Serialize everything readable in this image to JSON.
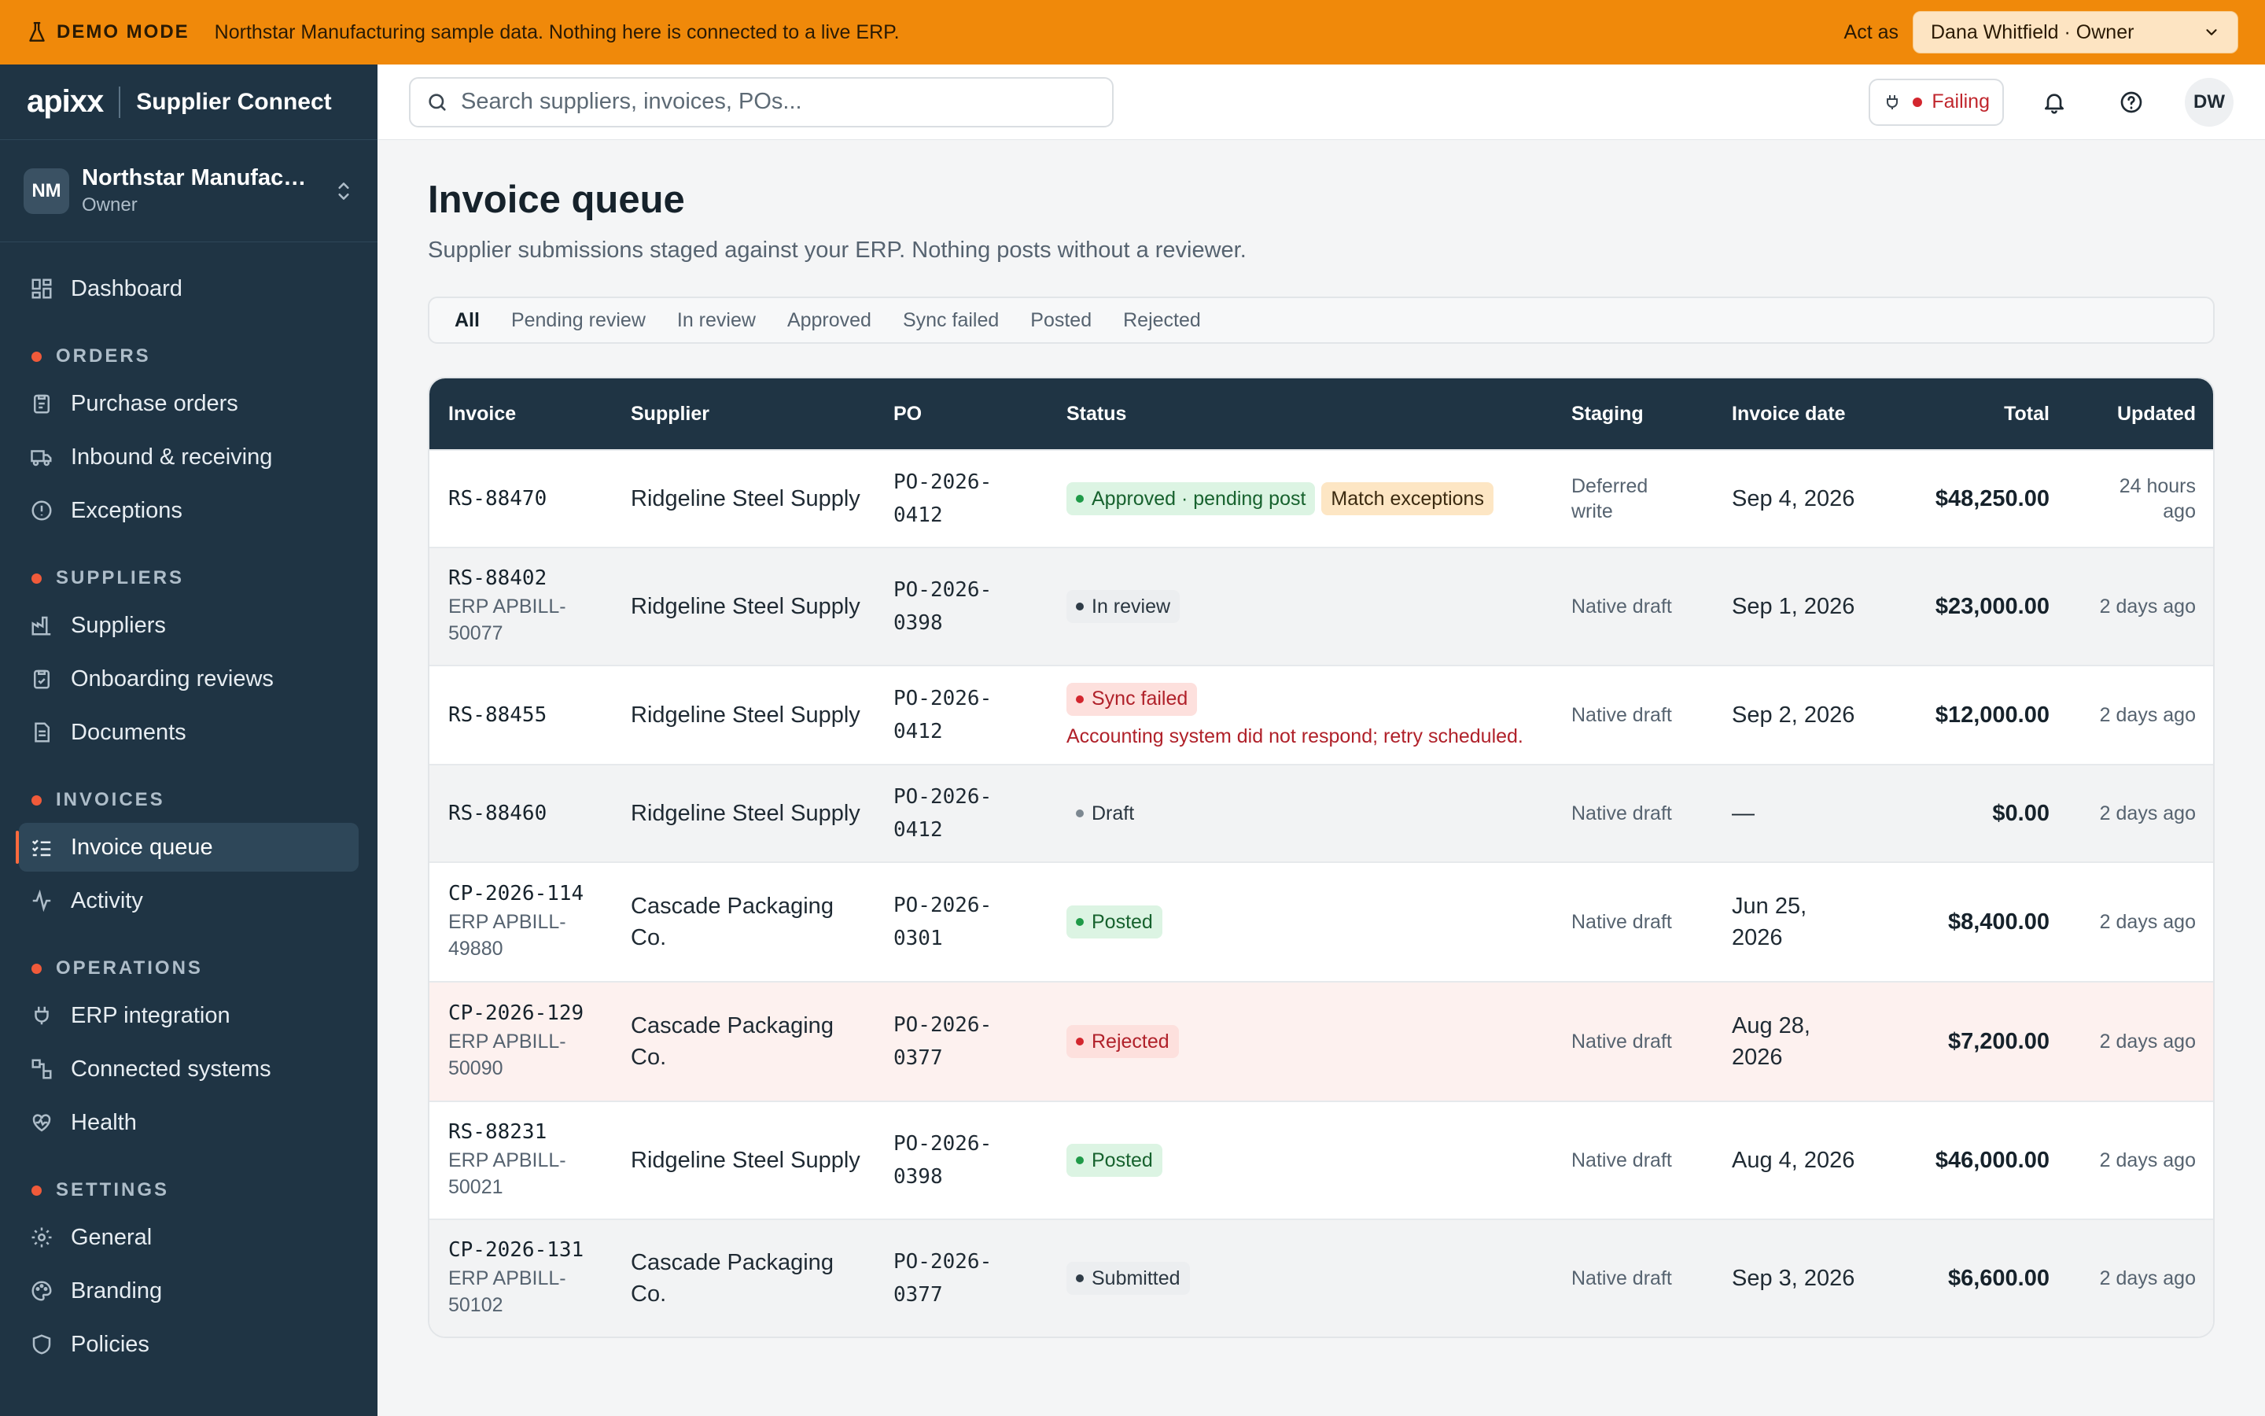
{
  "banner": {
    "label": "DEMO MODE",
    "text": "Northstar Manufacturing sample data. Nothing here is connected to a live ERP.",
    "act_as_label": "Act as",
    "act_as_value": "Dana Whitfield · Owner"
  },
  "brand": {
    "logo": "apixx",
    "product": "Supplier Connect"
  },
  "org": {
    "initials": "NM",
    "name": "Northstar Manufacturing",
    "role": "Owner"
  },
  "nav": {
    "dashboard": "Dashboard",
    "orders_label": "ORDERS",
    "purchase_orders": "Purchase orders",
    "inbound": "Inbound & receiving",
    "exceptions": "Exceptions",
    "suppliers_label": "SUPPLIERS",
    "suppliers": "Suppliers",
    "onboarding": "Onboarding reviews",
    "documents": "Documents",
    "invoices_label": "INVOICES",
    "invoice_queue": "Invoice queue",
    "activity": "Activity",
    "operations_label": "OPERATIONS",
    "erp": "ERP integration",
    "connected": "Connected systems",
    "health": "Health",
    "settings_label": "SETTINGS",
    "general": "General",
    "branding": "Branding",
    "policies": "Policies"
  },
  "topbar": {
    "search_placeholder": "Search suppliers, invoices, POs...",
    "status": "Failing",
    "user_initials": "DW"
  },
  "page": {
    "title": "Invoice queue",
    "subtitle": "Supplier submissions staged against your ERP. Nothing posts without a reviewer."
  },
  "tabs": [
    "All",
    "Pending review",
    "In review",
    "Approved",
    "Sync failed",
    "Posted",
    "Rejected"
  ],
  "table": {
    "headers": {
      "invoice": "Invoice",
      "supplier": "Supplier",
      "po": "PO",
      "status": "Status",
      "staging": "Staging",
      "date": "Invoice date",
      "total": "Total",
      "updated": "Updated"
    },
    "rows": [
      {
        "id": "RS-88470",
        "erp": "",
        "supplier": "Ridgeline Steel Supply",
        "po": "PO-2026-0412",
        "status": "Approved · pending post",
        "status2": "Match exceptions",
        "error": "",
        "staging": "Deferred write",
        "date": "Sep 4, 2026",
        "total": "$48,250.00",
        "updated": "24 hours ago"
      },
      {
        "id": "RS-88402",
        "erp": "ERP APBILL-50077",
        "supplier": "Ridgeline Steel Supply",
        "po": "PO-2026-0398",
        "status": "In review",
        "status2": "",
        "error": "",
        "staging": "Native draft",
        "date": "Sep 1, 2026",
        "total": "$23,000.00",
        "updated": "2 days ago"
      },
      {
        "id": "RS-88455",
        "erp": "",
        "supplier": "Ridgeline Steel Supply",
        "po": "PO-2026-0412",
        "status": "Sync failed",
        "status2": "",
        "error": "Accounting system did not respond; retry scheduled.",
        "staging": "Native draft",
        "date": "Sep 2, 2026",
        "total": "$12,000.00",
        "updated": "2 days ago"
      },
      {
        "id": "RS-88460",
        "erp": "",
        "supplier": "Ridgeline Steel Supply",
        "po": "PO-2026-0412",
        "status": "Draft",
        "status2": "",
        "error": "",
        "staging": "Native draft",
        "date": "—",
        "total": "$0.00",
        "updated": "2 days ago"
      },
      {
        "id": "CP-2026-114",
        "erp": "ERP APBILL-49880",
        "supplier": "Cascade Packaging Co.",
        "po": "PO-2026-0301",
        "status": "Posted",
        "status2": "",
        "error": "",
        "staging": "Native draft",
        "date": "Jun 25, 2026",
        "total": "$8,400.00",
        "updated": "2 days ago"
      },
      {
        "id": "CP-2026-129",
        "erp": "ERP APBILL-50090",
        "supplier": "Cascade Packaging Co.",
        "po": "PO-2026-0377",
        "status": "Rejected",
        "status2": "",
        "error": "",
        "staging": "Native draft",
        "date": "Aug 28, 2026",
        "total": "$7,200.00",
        "updated": "2 days ago"
      },
      {
        "id": "RS-88231",
        "erp": "ERP APBILL-50021",
        "supplier": "Ridgeline Steel Supply",
        "po": "PO-2026-0398",
        "status": "Posted",
        "status2": "",
        "error": "",
        "staging": "Native draft",
        "date": "Aug 4, 2026",
        "total": "$46,000.00",
        "updated": "2 days ago"
      },
      {
        "id": "CP-2026-131",
        "erp": "ERP APBILL-50102",
        "supplier": "Cascade Packaging Co.",
        "po": "PO-2026-0377",
        "status": "Submitted",
        "status2": "",
        "error": "",
        "staging": "Native draft",
        "date": "Sep 3, 2026",
        "total": "$6,600.00",
        "updated": "2 days ago"
      }
    ]
  }
}
